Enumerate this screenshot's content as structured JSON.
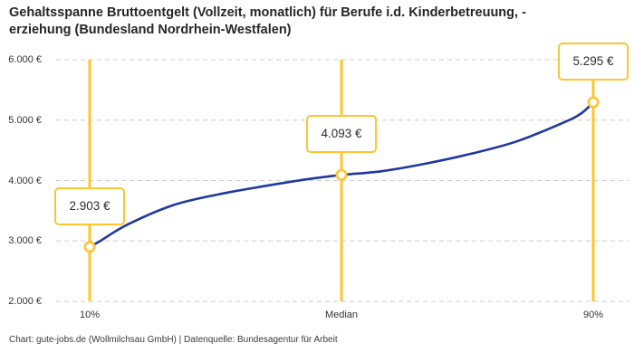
{
  "header": {
    "title": "Gehaltsspanne Bruttoentgelt (Vollzeit, monatlich) für Berufe i.d. Kinderbetreuung, -\nerziehung (Bundesland Nordrhein-Westfalen)"
  },
  "footer": {
    "source": "Chart: gute-jobs.de (Wollmilchsau GmbH) | Datenquelle: Bundesagentur für Arbeit"
  },
  "chart_data": {
    "type": "line",
    "title": "Gehaltsspanne Bruttoentgelt (Vollzeit, monatlich) für Berufe i.d. Kinderbetreuung, -erziehung (Bundesland Nordrhein-Westfalen)",
    "xlabel": "",
    "ylabel": "",
    "ylim": [
      2000,
      6000
    ],
    "grid": "horizontal-dashed",
    "legend": "none",
    "y_tick_values": [
      6000,
      5000,
      4000,
      3000,
      2000
    ],
    "y_tick_labels": [
      "6.000 €",
      "5.000 €",
      "4.000 €",
      "3.000 €",
      "2.000 €"
    ],
    "points": [
      {
        "label": "10%",
        "frac": 0,
        "value": 2903,
        "display": "2.903 €"
      },
      {
        "label": "Median",
        "frac": 0.5,
        "value": 4093,
        "display": "4.093 €"
      },
      {
        "label": "90%",
        "frac": 1,
        "value": 5295,
        "display": "5.295 €"
      }
    ],
    "curve": {
      "fracs": [
        0,
        0.02,
        0.075,
        0.165,
        0.255,
        0.345,
        0.435,
        0.5,
        0.58,
        0.67,
        0.758,
        0.847,
        0.937,
        0.975,
        1
      ],
      "values": [
        2903,
        2995,
        3270,
        3590,
        3770,
        3905,
        4025,
        4093,
        4155,
        4285,
        4445,
        4645,
        4945,
        5105,
        5295
      ]
    },
    "colors": {
      "line": "#20389f",
      "accent": "#ffc52e",
      "grid": "#cccccc",
      "label_box_bg": "#ffffff",
      "text": "#333333"
    }
  }
}
